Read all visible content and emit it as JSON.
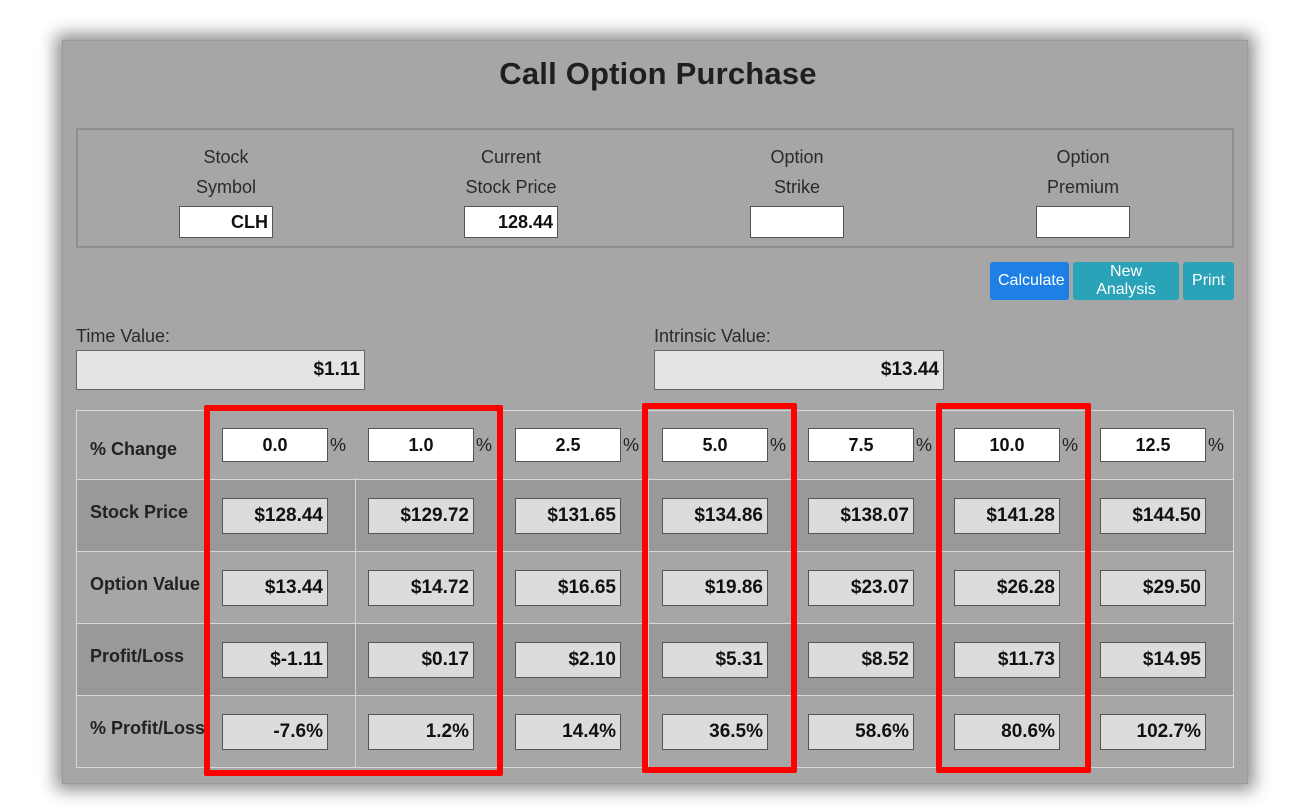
{
  "title": "Call Option Purchase",
  "inputs": [
    {
      "label1": "Stock",
      "label2": "Symbol",
      "value": "CLH"
    },
    {
      "label1": "Current",
      "label2": "Stock Price",
      "value": "128.44"
    },
    {
      "label1": "Option",
      "label2": "Strike",
      "value": ""
    },
    {
      "label1": "Option",
      "label2": "Premium",
      "value": ""
    }
  ],
  "buttons": {
    "calculate": "Calculate",
    "new_analysis": "New Analysis",
    "print": "Print"
  },
  "time_value": {
    "label": "Time Value:",
    "value": "$1.11"
  },
  "intrinsic_value": {
    "label": "Intrinsic Value:",
    "value": "$13.44"
  },
  "table": {
    "row_labels": [
      "% Change",
      "Stock Price",
      "Option Value",
      "Profit/Loss",
      "% Profit/Loss"
    ],
    "pct_sign": "%",
    "pct_change": [
      "0.0",
      "1.0",
      "2.5",
      "5.0",
      "7.5",
      "10.0",
      "12.5"
    ],
    "stock_price": [
      "$128.44",
      "$129.72",
      "$131.65",
      "$134.86",
      "$138.07",
      "$141.28",
      "$144.50"
    ],
    "option_value": [
      "$13.44",
      "$14.72",
      "$16.65",
      "$19.86",
      "$23.07",
      "$26.28",
      "$29.50"
    ],
    "profit_loss": [
      "$-1.11",
      "$0.17",
      "$2.10",
      "$5.31",
      "$8.52",
      "$11.73",
      "$14.95"
    ],
    "pct_profit_loss": [
      "-7.6%",
      "1.2%",
      "14.4%",
      "36.5%",
      "58.6%",
      "80.6%",
      "102.7%"
    ]
  },
  "colors": {
    "highlight": "#ff0000",
    "primary": "#1e7fe4",
    "info": "#2aa3b8"
  }
}
